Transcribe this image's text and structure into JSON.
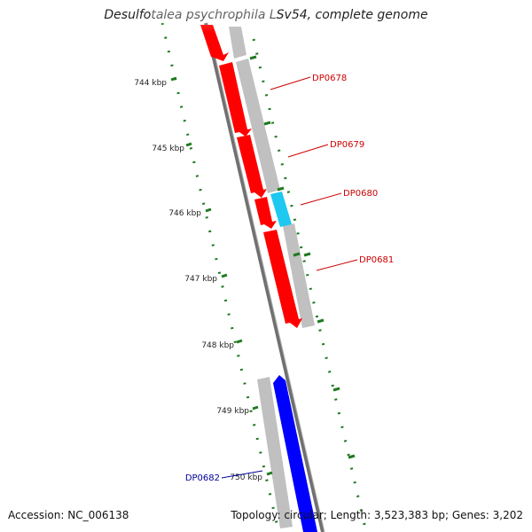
{
  "title": "Desulfotalea psychrophila LSv54, complete genome",
  "footer": {
    "accession": "Accession: NC_006138",
    "summary": "Topology: circular; Length: 3,523,383 bp; Genes: 3,202"
  },
  "ruler": {
    "unit": "kbp",
    "ticks": [
      {
        "label": "744 kbp"
      },
      {
        "label": "745 kbp"
      },
      {
        "label": "746 kbp"
      },
      {
        "label": "747 kbp"
      },
      {
        "label": "748 kbp"
      },
      {
        "label": "749 kbp"
      },
      {
        "label": "750 kbp"
      }
    ]
  },
  "genes": [
    {
      "label": "DP0678",
      "color": "#cc0000"
    },
    {
      "label": "DP0679",
      "color": "#cc0000"
    },
    {
      "label": "DP0680",
      "color": "#cc0000"
    },
    {
      "label": "DP0681",
      "color": "#cc0000"
    },
    {
      "label": "DP0682",
      "color": "#000099"
    }
  ],
  "colors": {
    "forward_cds": "#ff0000",
    "reverse_cds": "#0000ff",
    "rna": "#1ec8f0",
    "gene_shadow": "#c0c0c0",
    "backbone": "#808080",
    "ticks": "#1f7a1f"
  }
}
